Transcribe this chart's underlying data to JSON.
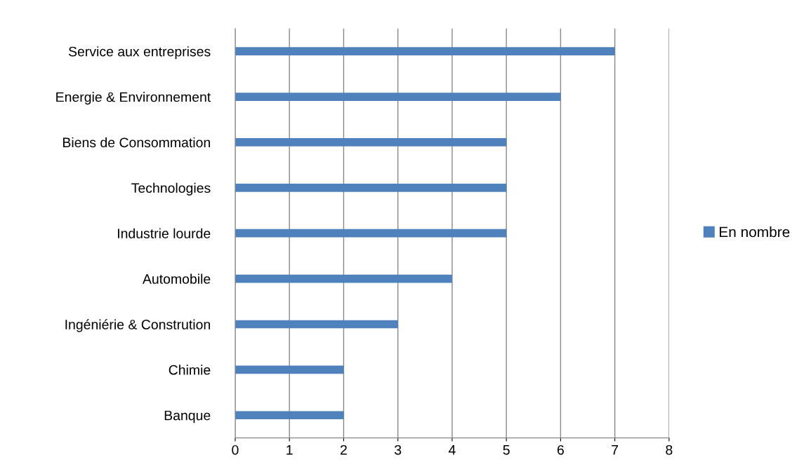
{
  "chart_data": {
    "type": "bar",
    "orientation": "horizontal",
    "categories": [
      "Service aux entreprises",
      "Energie & Environnement",
      "Biens de Consommation",
      "Technologies",
      "Industrie lourde",
      "Automobile",
      "Ingéniérie & Constrution",
      "Chimie",
      "Banque"
    ],
    "series": [
      {
        "name": "En nombre",
        "color": "#4f81bd",
        "values": [
          7,
          6,
          5,
          5,
          5,
          4,
          3,
          2,
          2
        ]
      }
    ],
    "xlim": [
      0,
      8
    ],
    "xticks": [
      0,
      1,
      2,
      3,
      4,
      5,
      6,
      7,
      8
    ],
    "grid": "x",
    "legend": "right"
  }
}
